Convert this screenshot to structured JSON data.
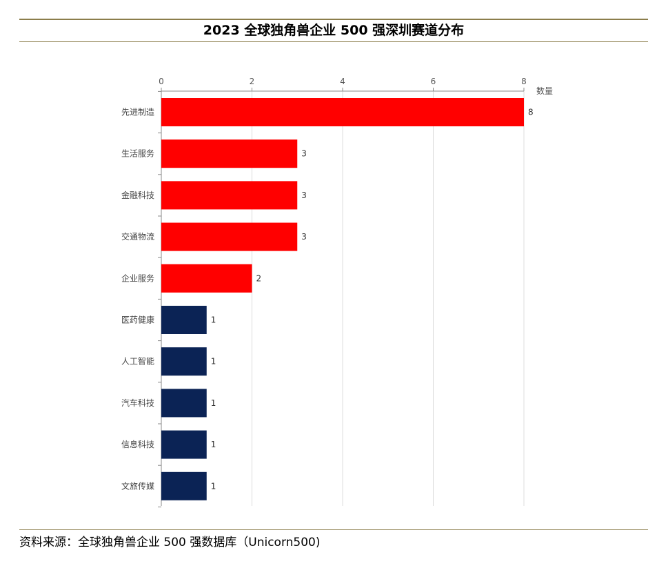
{
  "title": "2023 全球独角兽企业 500 强深圳赛道分布",
  "source": "资料来源：全球独角兽企业 500 强数据库（Unicorn500)",
  "chart_data": {
    "type": "bar",
    "orientation": "horizontal",
    "title": "2023 全球独角兽企业 500 强深圳赛道分布",
    "xlabel": "数量",
    "ylabel": "",
    "xlim": [
      0,
      8
    ],
    "x_ticks": [
      0,
      2,
      4,
      6,
      8
    ],
    "x_axis_position": "top",
    "grid": true,
    "legend": "none",
    "data_labels": true,
    "categories": [
      "先进制造",
      "生活服务",
      "金融科技",
      "交通物流",
      "企业服务",
      "医药健康",
      "人工智能",
      "汽车科技",
      "信息科技",
      "文旅传媒"
    ],
    "values": [
      8,
      3,
      3,
      3,
      2,
      1,
      1,
      1,
      1,
      1
    ],
    "colors": [
      "#ff0000",
      "#ff0000",
      "#ff0000",
      "#ff0000",
      "#ff0000",
      "#0b2355",
      "#0b2355",
      "#0b2355",
      "#0b2355",
      "#0b2355"
    ]
  }
}
